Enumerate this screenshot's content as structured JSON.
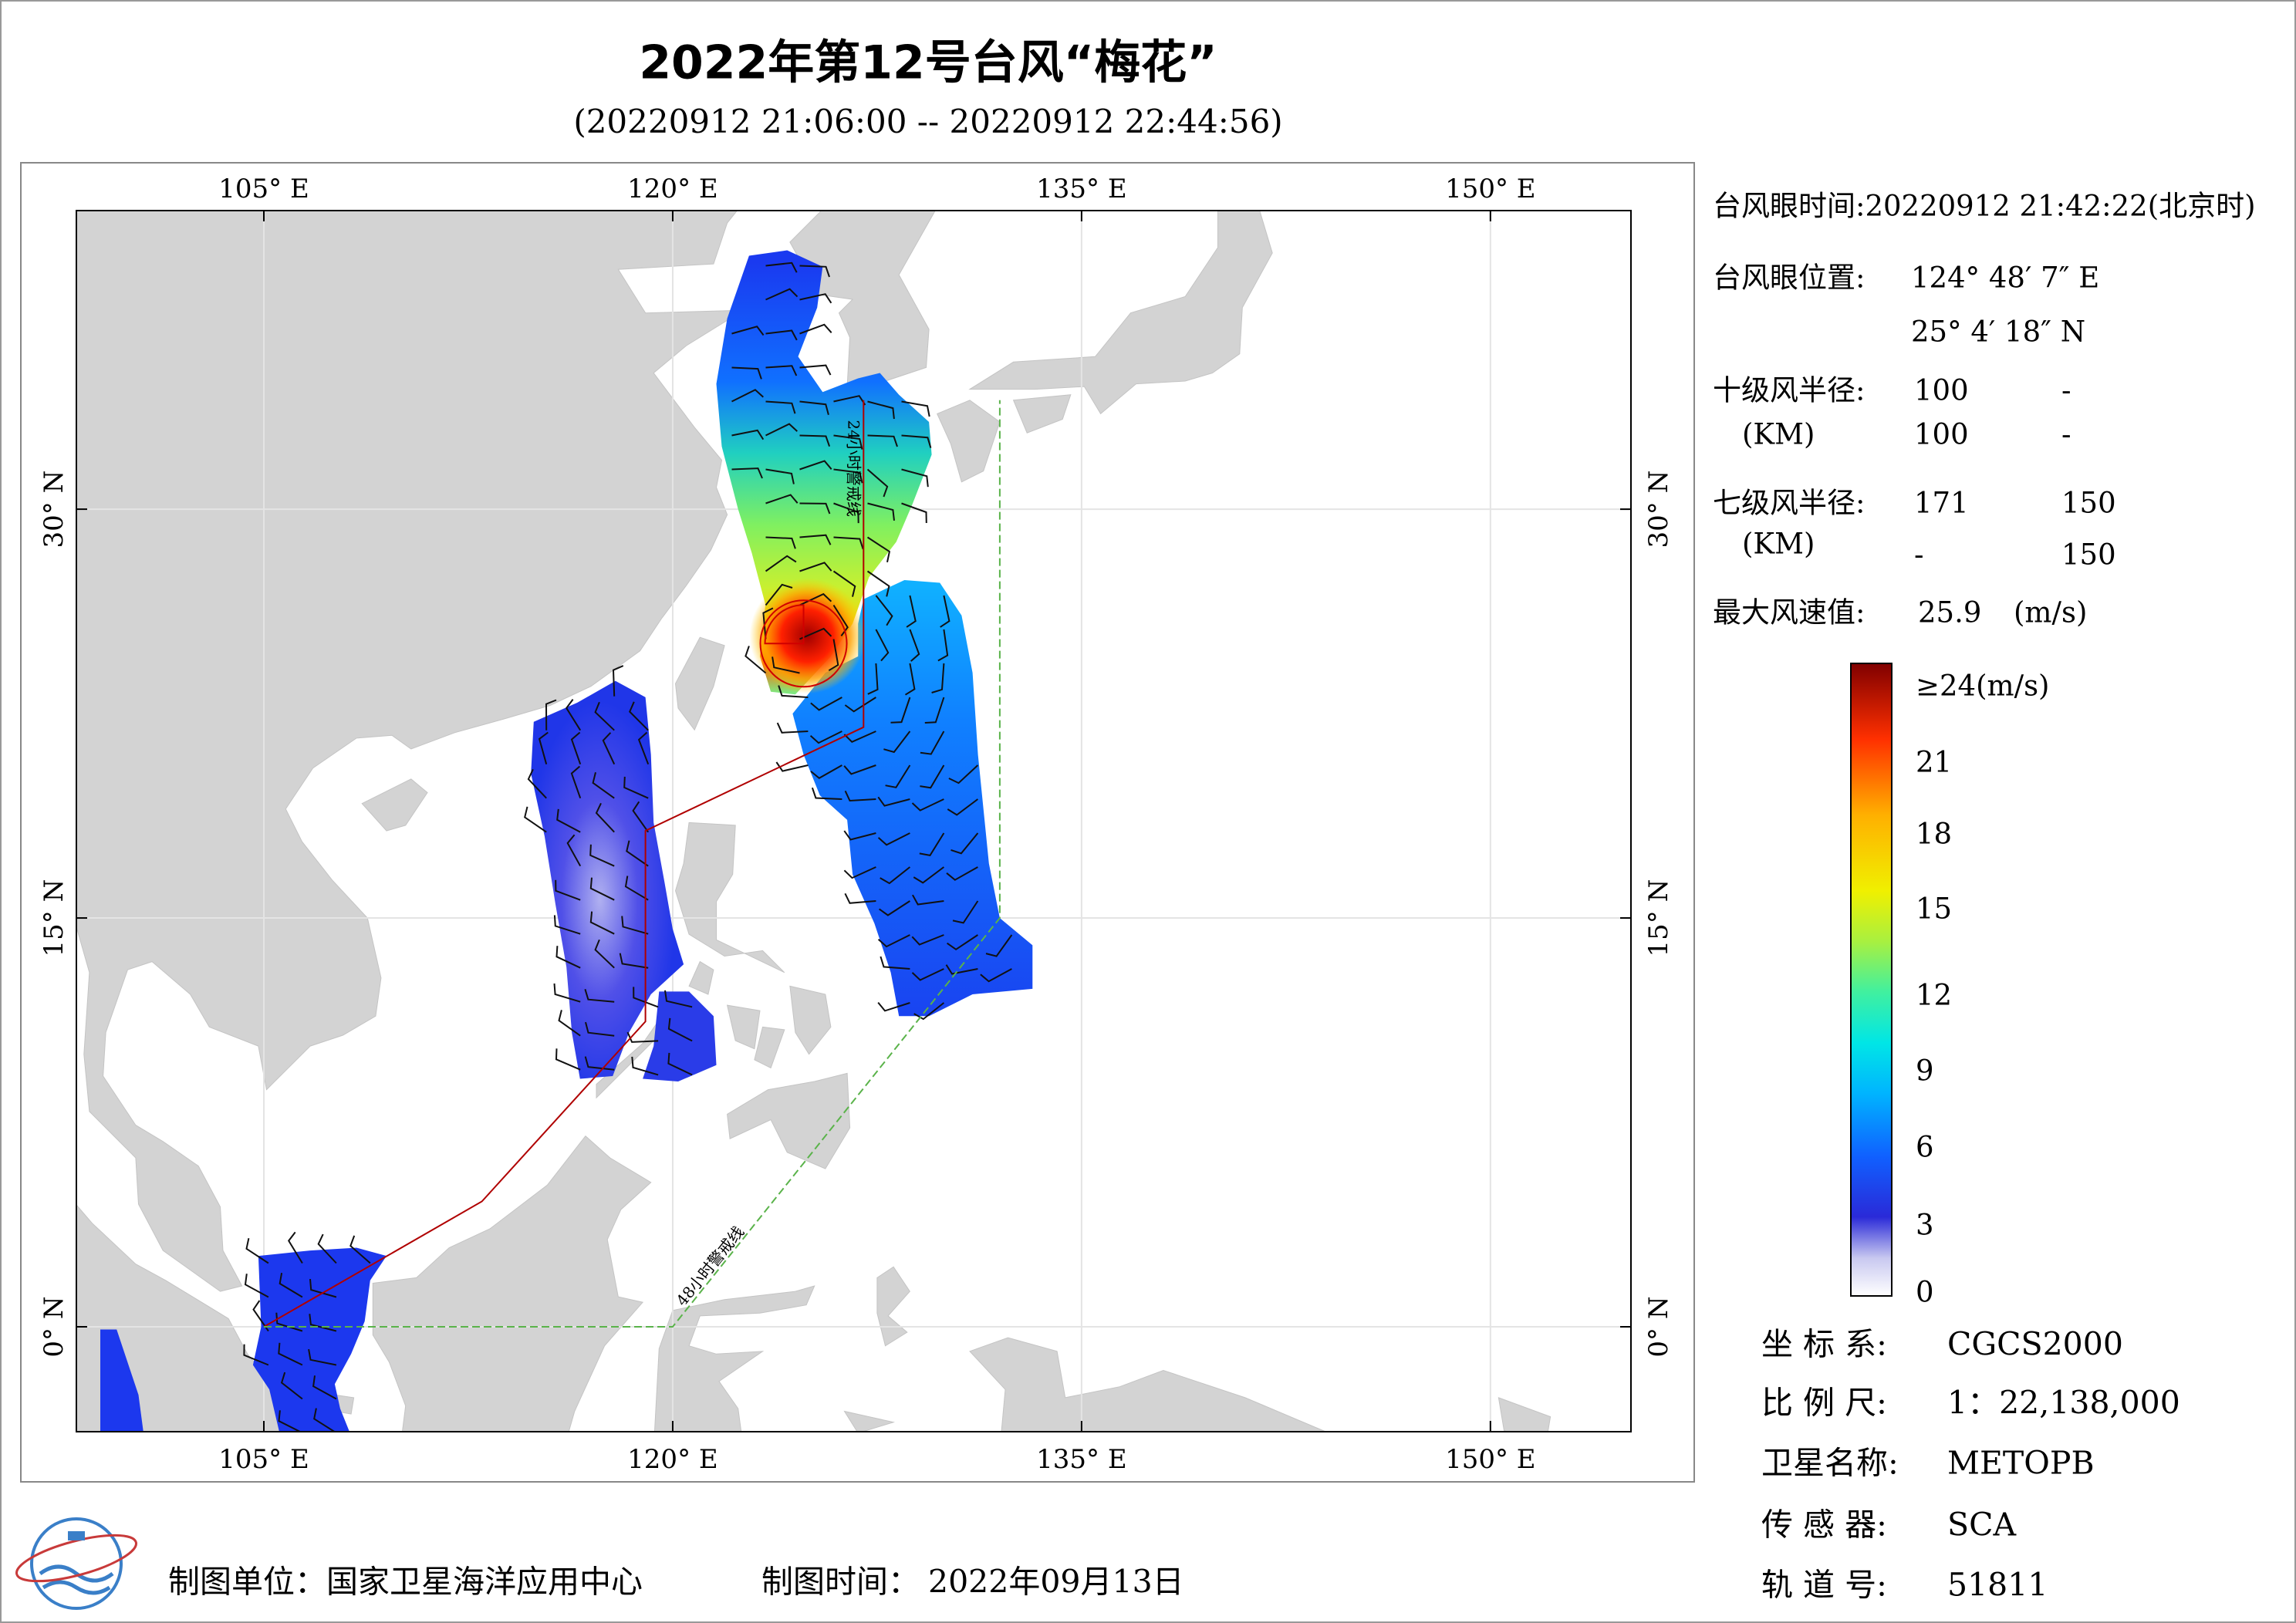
{
  "header": {
    "title": "2022年第12号台风“梅花”",
    "subtitle": "(20220912 21:06:00 -- 20220912 22:44:56)"
  },
  "map": {
    "lon_labels": [
      "105° E",
      "120° E",
      "135° E",
      "150° E"
    ],
    "lat_labels": [
      "30° N",
      "15° N",
      "0° N"
    ],
    "annotations": {
      "warning_24h": "24小时警戒线",
      "warning_48h": "48小时警戒线"
    }
  },
  "typhoon_info": {
    "eye_time": "台风眼时间:20220912 21:42:22(北京时)",
    "eye_position_label": "台风眼位置:",
    "eye_lon": "124° 48′ 7″ E",
    "eye_lat": "25° 4′ 18″ N",
    "r10_label": "十级风半径:",
    "r7_label": "七级风半径:",
    "unit_km": "(KM)",
    "r10": [
      [
        "100",
        "-"
      ],
      [
        "100",
        "-"
      ]
    ],
    "r7": [
      [
        "171",
        "150"
      ],
      [
        "-",
        "150"
      ]
    ],
    "max_wind_label": "最大风速值:",
    "max_wind": "25.9",
    "max_wind_unit": "(m/s)"
  },
  "colorbar": {
    "labels": [
      "≥24(m/s)",
      "21",
      "18",
      "15",
      "12",
      "9",
      "6",
      "3",
      "0"
    ]
  },
  "product_info": [
    {
      "label": "坐 标 系:",
      "value": "CGCS2000"
    },
    {
      "label": "比 例 尺:",
      "value": "1：22,138,000"
    },
    {
      "label": "卫星名称:",
      "value": "METOPB"
    },
    {
      "label": "传 感 器:",
      "value": "SCA"
    },
    {
      "label": "轨 道 号:",
      "value": "51811"
    }
  ],
  "footer": {
    "unit": "制图单位：国家卫星海洋应用中心",
    "time_label": "制图时间：",
    "time": "2022年09月13日"
  }
}
